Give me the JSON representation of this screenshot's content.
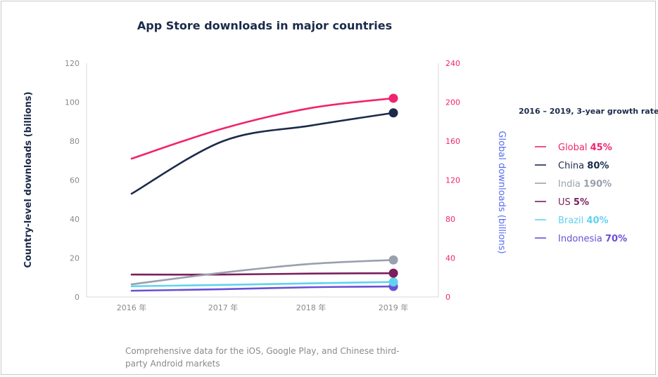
{
  "chart_data": {
    "type": "line",
    "title": "App Store downloads in major countries",
    "ylabel_left": "Country-level downloads (billions)",
    "ylabel_right": "Global downloads (billions)",
    "x": [
      "2016 年",
      "2017 年",
      "2018 年",
      "2019 年"
    ],
    "ylim_left": [
      0,
      120
    ],
    "ylim_right": [
      0,
      240
    ],
    "yticks_left": [
      "0",
      "20",
      "40",
      "60",
      "80",
      "100",
      "120"
    ],
    "yticks_right": [
      "0",
      "40",
      "80",
      "120",
      "160",
      "200",
      "240"
    ],
    "grid": false,
    "legend_title": "2016 – 2019, 3-year growth rate",
    "legend_position": "right",
    "series": [
      {
        "name": "Global",
        "growth": "45%",
        "axis": "right",
        "color": "#f0246e",
        "values": [
          142,
          173,
          194,
          204
        ]
      },
      {
        "name": "China",
        "growth": "80%",
        "axis": "left",
        "color": "#1c2a4a",
        "values": [
          53,
          80,
          88,
          94.5
        ]
      },
      {
        "name": "India",
        "growth": "190%",
        "axis": "left",
        "color": "#9aa0ae",
        "values": [
          6.5,
          12.5,
          17,
          19
        ]
      },
      {
        "name": "US",
        "growth": "5%",
        "axis": "left",
        "color": "#7a1e5c",
        "values": [
          11.5,
          11.5,
          12,
          12.2
        ]
      },
      {
        "name": "Brazil",
        "growth": "40%",
        "axis": "left",
        "color": "#5fd3ef",
        "values": [
          5.5,
          6.2,
          7,
          7.7
        ]
      },
      {
        "name": "Indonesia",
        "growth": "70%",
        "axis": "left",
        "color": "#6a4fd6",
        "values": [
          3.2,
          4,
          5,
          5.4
        ]
      }
    ]
  },
  "footnote": "Comprehensive data for the iOS, Google Play, and Chinese third-party Android markets"
}
